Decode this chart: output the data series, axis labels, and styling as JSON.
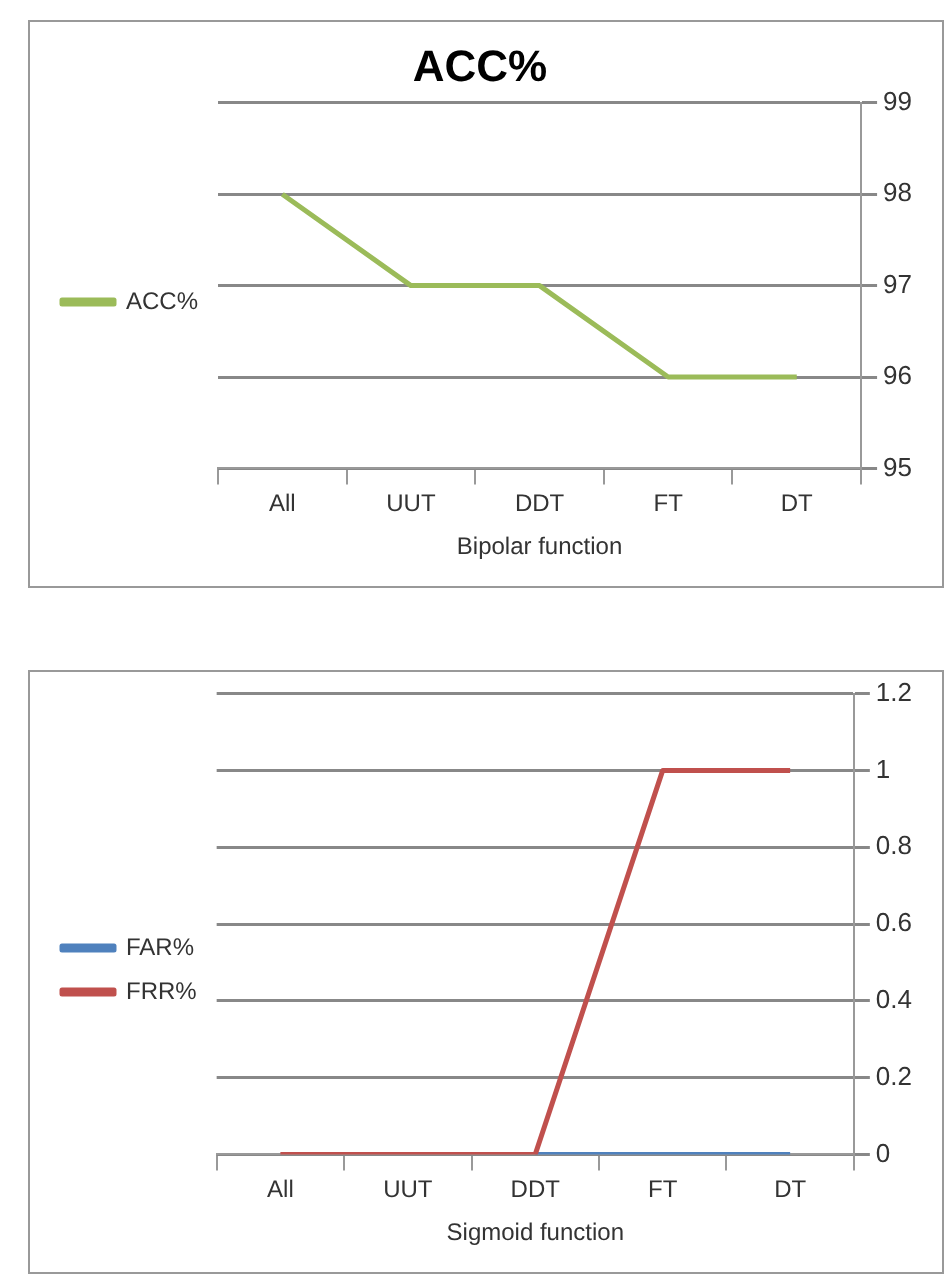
{
  "chart_data": [
    {
      "type": "line",
      "title": "ACC%",
      "xlabel": "Bipolar function",
      "categories": [
        "All",
        "UUT",
        "DDT",
        "FT",
        "DT"
      ],
      "series": [
        {
          "name": "ACC%",
          "color": "#9bbb59",
          "values": [
            98,
            97,
            97,
            96,
            96
          ]
        }
      ],
      "ylim": [
        95,
        99
      ],
      "yticks": [
        95,
        96,
        97,
        98,
        99
      ],
      "grid": "y",
      "legend": "left",
      "marker": "none"
    },
    {
      "type": "line",
      "xlabel": "Sigmoid function",
      "categories": [
        "All",
        "UUT",
        "DDT",
        "FT",
        "DT"
      ],
      "series": [
        {
          "name": "FAR%",
          "color": "#4f81bd",
          "values": [
            null,
            null,
            0,
            0,
            0
          ]
        },
        {
          "name": "FRR%",
          "color": "#c0504d",
          "values": [
            0,
            0,
            0,
            1,
            1
          ]
        }
      ],
      "ylim": [
        0,
        1.2
      ],
      "yticks": [
        0,
        0.2,
        0.4,
        0.6,
        0.8,
        1,
        1.2
      ],
      "grid": "y",
      "legend": "left",
      "marker": "none"
    }
  ]
}
